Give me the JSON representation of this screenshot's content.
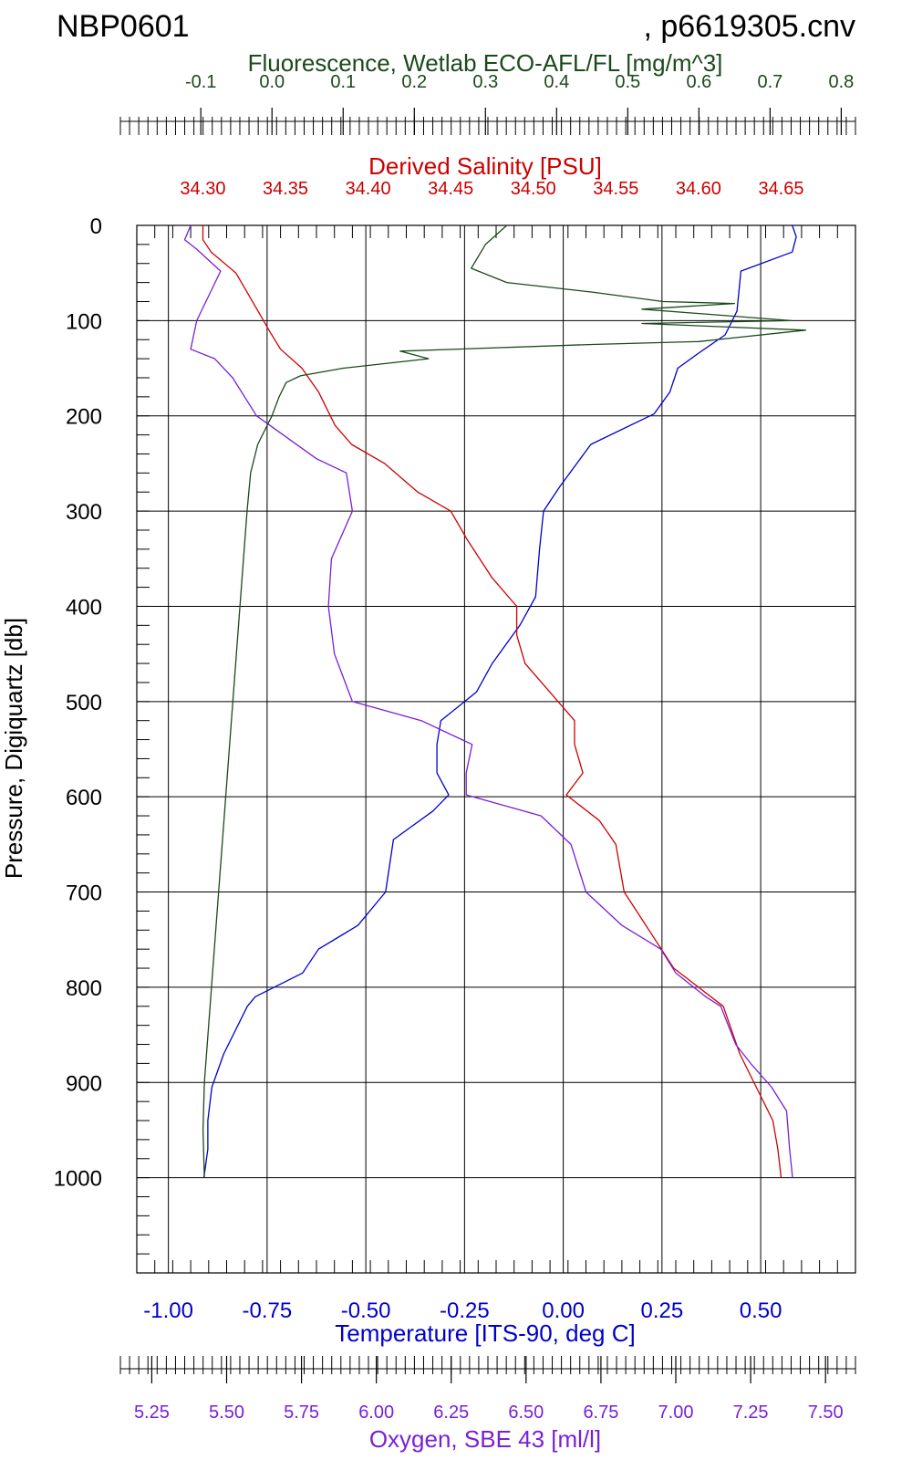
{
  "page": {
    "title_left": "NBP0601",
    "title_right": ", p6619305.cnv"
  },
  "chart_data": {
    "type": "line",
    "y_axis": {
      "label": "Pressure, Digiquartz [db]",
      "range": [
        0,
        1100
      ],
      "inverted": true,
      "ticks": [
        0,
        100,
        200,
        300,
        400,
        500,
        600,
        700,
        800,
        900,
        1000
      ],
      "tick_labels": [
        "0",
        "100",
        "200",
        "300",
        "400",
        "500",
        "600",
        "700",
        "800",
        "900",
        "1000"
      ]
    },
    "axes": {
      "fluorescence": {
        "label": "Fluorescence, Wetlab ECO-AFL/FL [mg/m^3]",
        "range": [
          -0.19,
          0.82
        ],
        "ticks": [
          -0.1,
          0.0,
          0.1,
          0.2,
          0.3,
          0.4,
          0.5,
          0.6,
          0.7,
          0.8
        ],
        "tick_labels": [
          "-0.1",
          "0.0",
          "0.1",
          "0.2",
          "0.3",
          "0.4",
          "0.5",
          "0.6",
          "0.7",
          "0.8"
        ],
        "color": "#1a4a1a"
      },
      "salinity": {
        "label": "Derived Salinity [PSU]",
        "range": [
          34.26,
          34.695
        ],
        "ticks": [
          34.3,
          34.35,
          34.4,
          34.45,
          34.5,
          34.55,
          34.6,
          34.65
        ],
        "tick_labels": [
          "34.30",
          "34.35",
          "34.40",
          "34.45",
          "34.50",
          "34.55",
          "34.60",
          "34.65"
        ],
        "color": "#cc0000"
      },
      "temperature": {
        "label": "Temperature [ITS-90, deg C]",
        "range": [
          -1.08,
          0.74
        ],
        "ticks": [
          -1.0,
          -0.75,
          -0.5,
          -0.25,
          0.0,
          0.25,
          0.5
        ],
        "tick_labels": [
          "-1.00",
          "-0.75",
          "-0.50",
          "-0.25",
          "0.00",
          "0.25",
          "0.50"
        ],
        "color": "#0000cc"
      },
      "oxygen": {
        "label": "Oxygen, SBE 43 [ml/l]",
        "range": [
          5.2,
          7.6
        ],
        "ticks": [
          5.25,
          5.5,
          5.75,
          6.0,
          6.25,
          6.5,
          6.75,
          7.0,
          7.25,
          7.5
        ],
        "tick_labels": [
          "5.25",
          "5.50",
          "5.75",
          "6.00",
          "6.25",
          "6.50",
          "6.75",
          "7.00",
          "7.25",
          "7.50"
        ],
        "color": "#7a1fd6"
      }
    },
    "grid": true,
    "series": [
      {
        "axis": "temperature",
        "color": "#0000cc",
        "points": [
          [
            0.58,
            0
          ],
          [
            0.59,
            12
          ],
          [
            0.58,
            28
          ],
          [
            0.45,
            48
          ],
          [
            0.44,
            90
          ],
          [
            0.41,
            115
          ],
          [
            0.34,
            135
          ],
          [
            0.29,
            150
          ],
          [
            0.27,
            175
          ],
          [
            0.23,
            198
          ],
          [
            0.07,
            230
          ],
          [
            -0.01,
            275
          ],
          [
            -0.05,
            300
          ],
          [
            -0.06,
            340
          ],
          [
            -0.07,
            390
          ],
          [
            -0.11,
            420
          ],
          [
            -0.18,
            460
          ],
          [
            -0.22,
            490
          ],
          [
            -0.31,
            520
          ],
          [
            -0.32,
            545
          ],
          [
            -0.32,
            575
          ],
          [
            -0.29,
            598
          ],
          [
            -0.33,
            615
          ],
          [
            -0.43,
            645
          ],
          [
            -0.45,
            700
          ],
          [
            -0.52,
            735
          ],
          [
            -0.62,
            760
          ],
          [
            -0.66,
            785
          ],
          [
            -0.78,
            810
          ],
          [
            -0.8,
            820
          ],
          [
            -0.86,
            870
          ],
          [
            -0.89,
            905
          ],
          [
            -0.9,
            940
          ],
          [
            -0.9,
            970
          ],
          [
            -0.91,
            1000
          ]
        ]
      },
      {
        "axis": "salinity",
        "color": "#cc0000",
        "points": [
          [
            34.3,
            0
          ],
          [
            34.3,
            15
          ],
          [
            34.305,
            28
          ],
          [
            34.32,
            50
          ],
          [
            34.335,
            95
          ],
          [
            34.34,
            110
          ],
          [
            34.347,
            130
          ],
          [
            34.36,
            150
          ],
          [
            34.37,
            175
          ],
          [
            34.38,
            210
          ],
          [
            34.39,
            230
          ],
          [
            34.41,
            250
          ],
          [
            34.43,
            280
          ],
          [
            34.45,
            300
          ],
          [
            34.46,
            330
          ],
          [
            34.475,
            370
          ],
          [
            34.49,
            400
          ],
          [
            34.49,
            430
          ],
          [
            34.495,
            460
          ],
          [
            34.51,
            490
          ],
          [
            34.525,
            520
          ],
          [
            34.525,
            545
          ],
          [
            34.53,
            575
          ],
          [
            34.52,
            598
          ],
          [
            34.54,
            625
          ],
          [
            34.55,
            650
          ],
          [
            34.555,
            700
          ],
          [
            34.57,
            740
          ],
          [
            34.585,
            780
          ],
          [
            34.6,
            800
          ],
          [
            34.615,
            820
          ],
          [
            34.625,
            870
          ],
          [
            34.635,
            905
          ],
          [
            34.645,
            940
          ],
          [
            34.648,
            970
          ],
          [
            34.65,
            1000
          ]
        ]
      },
      {
        "axis": "oxygen",
        "color": "#7a1fd6",
        "points": [
          [
            5.38,
            0
          ],
          [
            5.36,
            15
          ],
          [
            5.4,
            25
          ],
          [
            5.48,
            48
          ],
          [
            5.4,
            100
          ],
          [
            5.38,
            130
          ],
          [
            5.46,
            140
          ],
          [
            5.52,
            160
          ],
          [
            5.6,
            200
          ],
          [
            5.8,
            245
          ],
          [
            5.9,
            260
          ],
          [
            5.92,
            300
          ],
          [
            5.85,
            350
          ],
          [
            5.84,
            400
          ],
          [
            5.86,
            450
          ],
          [
            5.92,
            500
          ],
          [
            6.15,
            520
          ],
          [
            6.32,
            545
          ],
          [
            6.3,
            575
          ],
          [
            6.3,
            598
          ],
          [
            6.55,
            620
          ],
          [
            6.65,
            650
          ],
          [
            6.7,
            700
          ],
          [
            6.82,
            735
          ],
          [
            6.95,
            760
          ],
          [
            7.0,
            785
          ],
          [
            7.1,
            810
          ],
          [
            7.15,
            820
          ],
          [
            7.2,
            860
          ],
          [
            7.25,
            880
          ],
          [
            7.32,
            905
          ],
          [
            7.37,
            930
          ],
          [
            7.38,
            970
          ],
          [
            7.39,
            1000
          ]
        ]
      },
      {
        "axis": "fluorescence",
        "color": "#1a4a1a",
        "points": [
          [
            0.33,
            0
          ],
          [
            0.3,
            20
          ],
          [
            0.28,
            45
          ],
          [
            0.33,
            60
          ],
          [
            0.45,
            70
          ],
          [
            0.55,
            80
          ],
          [
            0.65,
            82
          ],
          [
            0.52,
            88
          ],
          [
            0.73,
            100
          ],
          [
            0.52,
            103
          ],
          [
            0.75,
            110
          ],
          [
            0.65,
            118
          ],
          [
            0.6,
            122
          ],
          [
            0.45,
            125
          ],
          [
            0.18,
            132
          ],
          [
            0.22,
            140
          ],
          [
            0.1,
            150
          ],
          [
            0.04,
            158
          ],
          [
            0.02,
            165
          ],
          [
            0.01,
            180
          ],
          [
            0.0,
            200
          ],
          [
            -0.02,
            230
          ],
          [
            -0.03,
            260
          ],
          [
            -0.035,
            300
          ],
          [
            -0.04,
            350
          ],
          [
            -0.045,
            400
          ],
          [
            -0.05,
            450
          ],
          [
            -0.055,
            500
          ],
          [
            -0.06,
            550
          ],
          [
            -0.065,
            600
          ],
          [
            -0.07,
            650
          ],
          [
            -0.075,
            700
          ],
          [
            -0.08,
            750
          ],
          [
            -0.085,
            800
          ],
          [
            -0.09,
            850
          ],
          [
            -0.095,
            900
          ],
          [
            -0.097,
            950
          ],
          [
            -0.095,
            1000
          ]
        ]
      }
    ]
  }
}
